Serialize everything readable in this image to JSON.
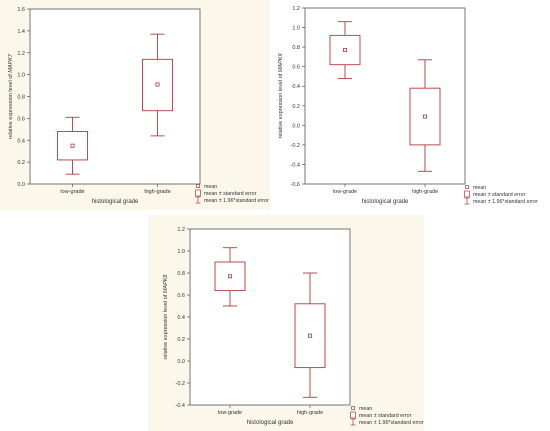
{
  "chart_data": [
    {
      "type": "box",
      "ylabel_prefix": "relative expression level of ",
      "ylabel_gene": "MAPK7",
      "xlabel": "histological grade",
      "categories": [
        "low-grade",
        "high-grade"
      ],
      "ylim": [
        0.0,
        1.6
      ],
      "yticks": [
        "0.0",
        "0.2",
        "0.4",
        "0.6",
        "0.8",
        "1.0",
        "1.2",
        "1.4",
        "1.6"
      ],
      "boxes": [
        {
          "category": "low-grade",
          "mean": 0.35,
          "se_low": 0.22,
          "se_high": 0.48,
          "ci_low": 0.09,
          "ci_high": 0.61
        },
        {
          "category": "high-grade",
          "mean": 0.91,
          "se_low": 0.67,
          "se_high": 1.14,
          "ci_low": 0.44,
          "ci_high": 1.37
        }
      ],
      "legend": [
        "mean",
        "mean ± standard error",
        "mean ± 1.96*standard error"
      ],
      "legend_position": "bottom-right",
      "color": "#b33a3a"
    },
    {
      "type": "box",
      "ylabel_prefix": "relative expression level of ",
      "ylabel_gene": "MAPK9",
      "xlabel": "histological grade",
      "categories": [
        "low-grade",
        "high-grade"
      ],
      "ylim": [
        -0.6,
        1.2
      ],
      "yticks": [
        "-0.6",
        "-0.4",
        "-0.2",
        "0.0",
        "0.2",
        "0.4",
        "0.6",
        "0.8",
        "1.0",
        "1.2"
      ],
      "boxes": [
        {
          "category": "low-grade",
          "mean": 0.77,
          "se_low": 0.62,
          "se_high": 0.92,
          "ci_low": 0.48,
          "ci_high": 1.06
        },
        {
          "category": "high-grade",
          "mean": 0.09,
          "se_low": -0.2,
          "se_high": 0.38,
          "ci_low": -0.47,
          "ci_high": 0.67
        }
      ],
      "legend": [
        "mean",
        "mean ± standard error",
        "mean ± 1.96*standard error"
      ],
      "legend_position": "bottom-right",
      "color": "#b33a3a"
    },
    {
      "type": "box",
      "ylabel_prefix": "relative expression level of ",
      "ylabel_gene": "MAPK8",
      "xlabel": "histological grade",
      "categories": [
        "low-grade",
        "high-grade"
      ],
      "ylim": [
        -0.4,
        1.2
      ],
      "yticks": [
        "-0.4",
        "-0.2",
        "0.0",
        "0.2",
        "0.4",
        "0.6",
        "0.8",
        "1.0",
        "1.2"
      ],
      "boxes": [
        {
          "category": "low-grade",
          "mean": 0.77,
          "se_low": 0.64,
          "se_high": 0.9,
          "ci_low": 0.5,
          "ci_high": 1.03
        },
        {
          "category": "high-grade",
          "mean": 0.23,
          "se_low": -0.06,
          "se_high": 0.52,
          "ci_low": -0.33,
          "ci_high": 0.8
        }
      ],
      "legend": [
        "mean",
        "mean ± standard error",
        "mean ± 1.96*standard error"
      ],
      "legend_position": "bottom-right",
      "color": "#b33a3a"
    }
  ]
}
